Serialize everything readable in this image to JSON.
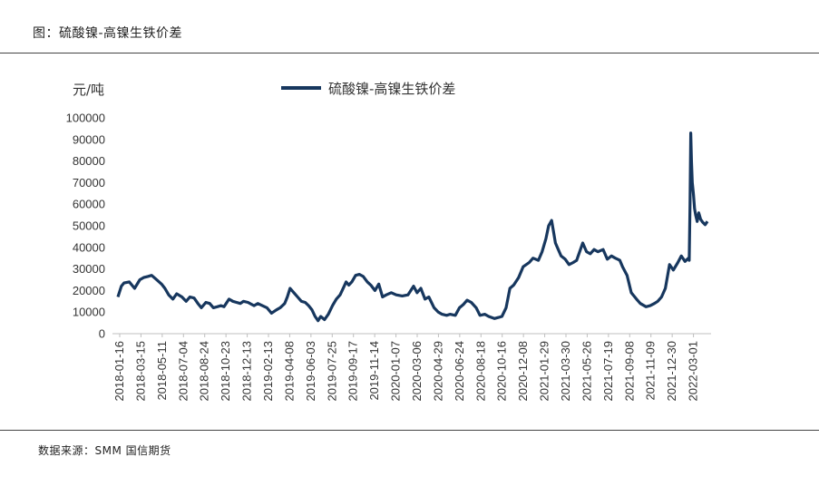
{
  "header": {
    "title": "图：硫酸镍-高镍生铁价差"
  },
  "footer": {
    "source": "数据来源：SMM 国信期货"
  },
  "chart_data": {
    "type": "line",
    "title": "",
    "unit_label": "元/吨",
    "ylim": [
      0,
      100000
    ],
    "yticks": [
      0,
      10000,
      20000,
      30000,
      40000,
      50000,
      60000,
      70000,
      80000,
      90000,
      100000
    ],
    "categories": [
      "2018-01-16",
      "2018-03-15",
      "2018-05-11",
      "2018-07-04",
      "2018-08-24",
      "2018-10-23",
      "2018-12-13",
      "2019-02-13",
      "2019-04-08",
      "2019-06-03",
      "2019-07-25",
      "2019-09-17",
      "2019-11-14",
      "2020-01-07",
      "2020-03-06",
      "2020-04-29",
      "2020-06-24",
      "2020-08-18",
      "2020-10-16",
      "2020-12-08",
      "2021-01-29",
      "2021-03-30",
      "2021-05-26",
      "2021-07-19",
      "2021-09-08",
      "2021-11-09",
      "2021-12-30",
      "2022-03-01"
    ],
    "legend_position": "top",
    "grid": false,
    "colors": {
      "series": "#17375e"
    },
    "series": [
      {
        "name": "硫酸镍-高镍生铁价差",
        "x": [
          "2018-01-16",
          "2018-01-25",
          "2018-02-01",
          "2018-02-15",
          "2018-03-01",
          "2018-03-15",
          "2018-03-25",
          "2018-04-05",
          "2018-04-15",
          "2018-04-25",
          "2018-05-11",
          "2018-05-20",
          "2018-05-30",
          "2018-06-10",
          "2018-06-20",
          "2018-07-04",
          "2018-07-15",
          "2018-07-25",
          "2018-08-05",
          "2018-08-15",
          "2018-08-24",
          "2018-09-05",
          "2018-09-15",
          "2018-09-25",
          "2018-10-05",
          "2018-10-15",
          "2018-10-23",
          "2018-11-05",
          "2018-11-15",
          "2018-11-25",
          "2018-12-05",
          "2018-12-13",
          "2018-12-25",
          "2019-01-10",
          "2019-01-20",
          "2019-02-13",
          "2019-02-25",
          "2019-03-10",
          "2019-03-20",
          "2019-04-01",
          "2019-04-08",
          "2019-04-15",
          "2019-04-25",
          "2019-05-05",
          "2019-05-15",
          "2019-05-25",
          "2019-06-03",
          "2019-06-12",
          "2019-06-20",
          "2019-06-28",
          "2019-07-05",
          "2019-07-15",
          "2019-07-25",
          "2019-08-05",
          "2019-08-15",
          "2019-08-25",
          "2019-09-05",
          "2019-09-10",
          "2019-09-17",
          "2019-09-25",
          "2019-10-05",
          "2019-10-15",
          "2019-10-25",
          "2019-11-05",
          "2019-11-14",
          "2019-11-25",
          "2019-12-05",
          "2019-12-15",
          "2019-12-25",
          "2020-01-07",
          "2020-01-20",
          "2020-02-05",
          "2020-02-20",
          "2020-03-06",
          "2020-03-15",
          "2020-03-25",
          "2020-04-05",
          "2020-04-15",
          "2020-04-29",
          "2020-05-10",
          "2020-05-20",
          "2020-06-01",
          "2020-06-10",
          "2020-06-24",
          "2020-07-05",
          "2020-07-15",
          "2020-07-25",
          "2020-08-05",
          "2020-08-18",
          "2020-08-28",
          "2020-09-10",
          "2020-09-20",
          "2020-10-05",
          "2020-10-16",
          "2020-10-25",
          "2020-11-05",
          "2020-11-15",
          "2020-11-25",
          "2020-12-08",
          "2020-12-20",
          "2021-01-05",
          "2021-01-15",
          "2021-01-29",
          "2021-02-08",
          "2021-02-18",
          "2021-02-25",
          "2021-03-05",
          "2021-03-15",
          "2021-03-30",
          "2021-04-10",
          "2021-04-20",
          "2021-05-01",
          "2021-05-10",
          "2021-05-26",
          "2021-06-05",
          "2021-06-15",
          "2021-06-25",
          "2021-07-05",
          "2021-07-19",
          "2021-07-30",
          "2021-08-10",
          "2021-08-20",
          "2021-09-01",
          "2021-09-08",
          "2021-09-20",
          "2021-10-01",
          "2021-10-15",
          "2021-10-25",
          "2021-11-09",
          "2021-11-20",
          "2021-12-01",
          "2021-12-10",
          "2021-12-20",
          "2021-12-30",
          "2022-01-10",
          "2022-01-20",
          "2022-02-01",
          "2022-02-10",
          "2022-02-20",
          "2022-03-01",
          "2022-03-03",
          "2022-03-05",
          "2022-03-07",
          "2022-03-09",
          "2022-03-11",
          "2022-03-14",
          "2022-03-17",
          "2022-03-20",
          "2022-03-24",
          "2022-03-28",
          "2022-04-02",
          "2022-04-08",
          "2022-04-14",
          "2022-04-20"
        ],
        "values": [
          17000,
          22000,
          23500,
          24000,
          21000,
          25000,
          26000,
          26500,
          27000,
          25500,
          23000,
          21000,
          18000,
          16000,
          18500,
          17000,
          15000,
          17000,
          16500,
          14000,
          12000,
          14500,
          14000,
          12000,
          12500,
          13000,
          12500,
          16000,
          15000,
          14500,
          14000,
          15000,
          14500,
          13000,
          14000,
          12000,
          9500,
          11000,
          12000,
          14000,
          17000,
          21000,
          19000,
          17000,
          15000,
          14500,
          13000,
          11000,
          8000,
          6000,
          8000,
          6500,
          9000,
          13000,
          16000,
          18000,
          22000,
          24000,
          22500,
          24000,
          27000,
          27500,
          26500,
          24000,
          22500,
          20000,
          23000,
          17000,
          18000,
          19000,
          18000,
          17500,
          18000,
          22000,
          19000,
          21000,
          16000,
          17000,
          12000,
          10000,
          9000,
          8500,
          9000,
          8500,
          12000,
          13500,
          15500,
          14500,
          12000,
          8500,
          9000,
          8000,
          7000,
          7500,
          8000,
          12000,
          21000,
          22500,
          26000,
          31000,
          33000,
          35000,
          34000,
          38000,
          44000,
          50000,
          52500,
          42000,
          36000,
          34500,
          32000,
          33000,
          34000,
          42000,
          38000,
          37000,
          39000,
          38000,
          39000,
          34500,
          36000,
          35000,
          34000,
          31000,
          27000,
          19000,
          16000,
          14000,
          12500,
          13000,
          14000,
          15000,
          17000,
          21000,
          32000,
          29500,
          33000,
          36000,
          33500,
          35000,
          34000,
          60000,
          93000,
          80000,
          70000,
          65000,
          58000,
          55000,
          52000,
          56000,
          53000,
          51500,
          50500,
          52000
        ]
      }
    ]
  }
}
